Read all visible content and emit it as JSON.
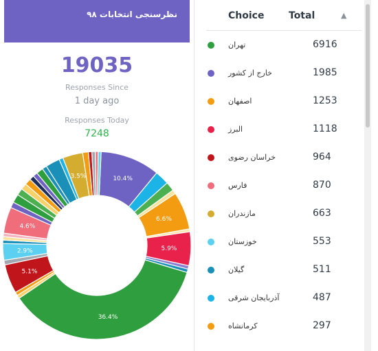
{
  "card": {
    "title": "نظرسنجی انتخابات ۹۸",
    "total": "19035",
    "since_label": "Responses Since",
    "since_value": "1 day ago",
    "today_label": "Responses Today",
    "today_value": "7248",
    "header_color": "#6e63c2"
  },
  "table": {
    "col_choice": "Choice",
    "col_total": "Total",
    "sort_icon": "sort-arrows-icon",
    "rows": [
      {
        "name": "تهران",
        "value": "6916",
        "color": "#2e9e3e"
      },
      {
        "name": "خارج از کشور",
        "value": "1985",
        "color": "#6e63c2"
      },
      {
        "name": "اصفهان",
        "value": "1253",
        "color": "#f39c12"
      },
      {
        "name": "البرز",
        "value": "1118",
        "color": "#e8224a"
      },
      {
        "name": "خراسان رضوی",
        "value": "964",
        "color": "#c0161b"
      },
      {
        "name": "فارس",
        "value": "870",
        "color": "#f06d7c"
      },
      {
        "name": "مازندران",
        "value": "663",
        "color": "#d4ac2f"
      },
      {
        "name": "خوزستان",
        "value": "553",
        "color": "#5bd0f0"
      },
      {
        "name": "گیلان",
        "value": "511",
        "color": "#1a8fb8"
      },
      {
        "name": "آذربایجان شرقی",
        "value": "487",
        "color": "#1cb4e6"
      },
      {
        "name": "کرمانشاه",
        "value": "297",
        "color": "#f39c12"
      }
    ]
  },
  "chart_data": {
    "type": "pie",
    "title": "",
    "slices": [
      {
        "value": 10.4,
        "label": "10.4%",
        "color": "#6e63c2"
      },
      {
        "value": 2.5,
        "label": "",
        "color": "#1cb4e6"
      },
      {
        "value": 1.6,
        "label": "",
        "color": "#4caf50"
      },
      {
        "value": 0.7,
        "label": "",
        "color": "#f7e39c"
      },
      {
        "value": 6.6,
        "label": "6.6%",
        "color": "#f39c12"
      },
      {
        "value": 0.5,
        "label": "",
        "color": "#fbe9b0"
      },
      {
        "value": 5.9,
        "label": "5.9%",
        "color": "#e8224a"
      },
      {
        "value": 0.6,
        "label": "",
        "color": "#8a7fd0"
      },
      {
        "value": 0.6,
        "label": "",
        "color": "#1a8fb8"
      },
      {
        "value": 36.4,
        "label": "36.4%",
        "color": "#2e9e3e"
      },
      {
        "value": 0.6,
        "label": "",
        "color": "#f7d26b"
      },
      {
        "value": 0.6,
        "label": "",
        "color": "#f39c12"
      },
      {
        "value": 5.1,
        "label": "5.1%",
        "color": "#c0161b"
      },
      {
        "value": 0.8,
        "label": "",
        "color": "#a0a8b0"
      },
      {
        "value": 2.9,
        "label": "2.9%",
        "color": "#5bd0f0"
      },
      {
        "value": 0.6,
        "label": "",
        "color": "#1a8fb8"
      },
      {
        "value": 0.6,
        "label": "",
        "color": "#f7e39c"
      },
      {
        "value": 0.6,
        "label": "",
        "color": "#f3b6c0"
      },
      {
        "value": 4.6,
        "label": "4.6%",
        "color": "#f06d7c"
      },
      {
        "value": 1.0,
        "label": "",
        "color": "#6e63c2"
      },
      {
        "value": 1.5,
        "label": "",
        "color": "#2e9e3e"
      },
      {
        "value": 1.2,
        "label": "",
        "color": "#4caf50"
      },
      {
        "value": 1.1,
        "label": "",
        "color": "#f7d26b"
      },
      {
        "value": 1.1,
        "label": "",
        "color": "#f39c12"
      },
      {
        "value": 0.8,
        "label": "",
        "color": "#1f2d5a"
      },
      {
        "value": 0.8,
        "label": "",
        "color": "#6e63c2"
      },
      {
        "value": 1.2,
        "label": "",
        "color": "#2e9e3e"
      },
      {
        "value": 0.8,
        "label": "",
        "color": "#1a8fb8"
      },
      {
        "value": 2.5,
        "label": "",
        "color": "#1a8fb8"
      },
      {
        "value": 0.7,
        "label": "",
        "color": "#1cb4e6"
      },
      {
        "value": 3.5,
        "label": "3.5%",
        "color": "#d4ac2f"
      },
      {
        "value": 1.0,
        "label": "",
        "color": "#f39c12"
      },
      {
        "value": 0.6,
        "label": "",
        "color": "#c0161b"
      },
      {
        "value": 0.6,
        "label": "",
        "color": "#a0a8b0"
      },
      {
        "value": 0.5,
        "label": "",
        "color": "#f06d7c"
      },
      {
        "value": 0.5,
        "label": "",
        "color": "#5bd0f0"
      }
    ]
  }
}
